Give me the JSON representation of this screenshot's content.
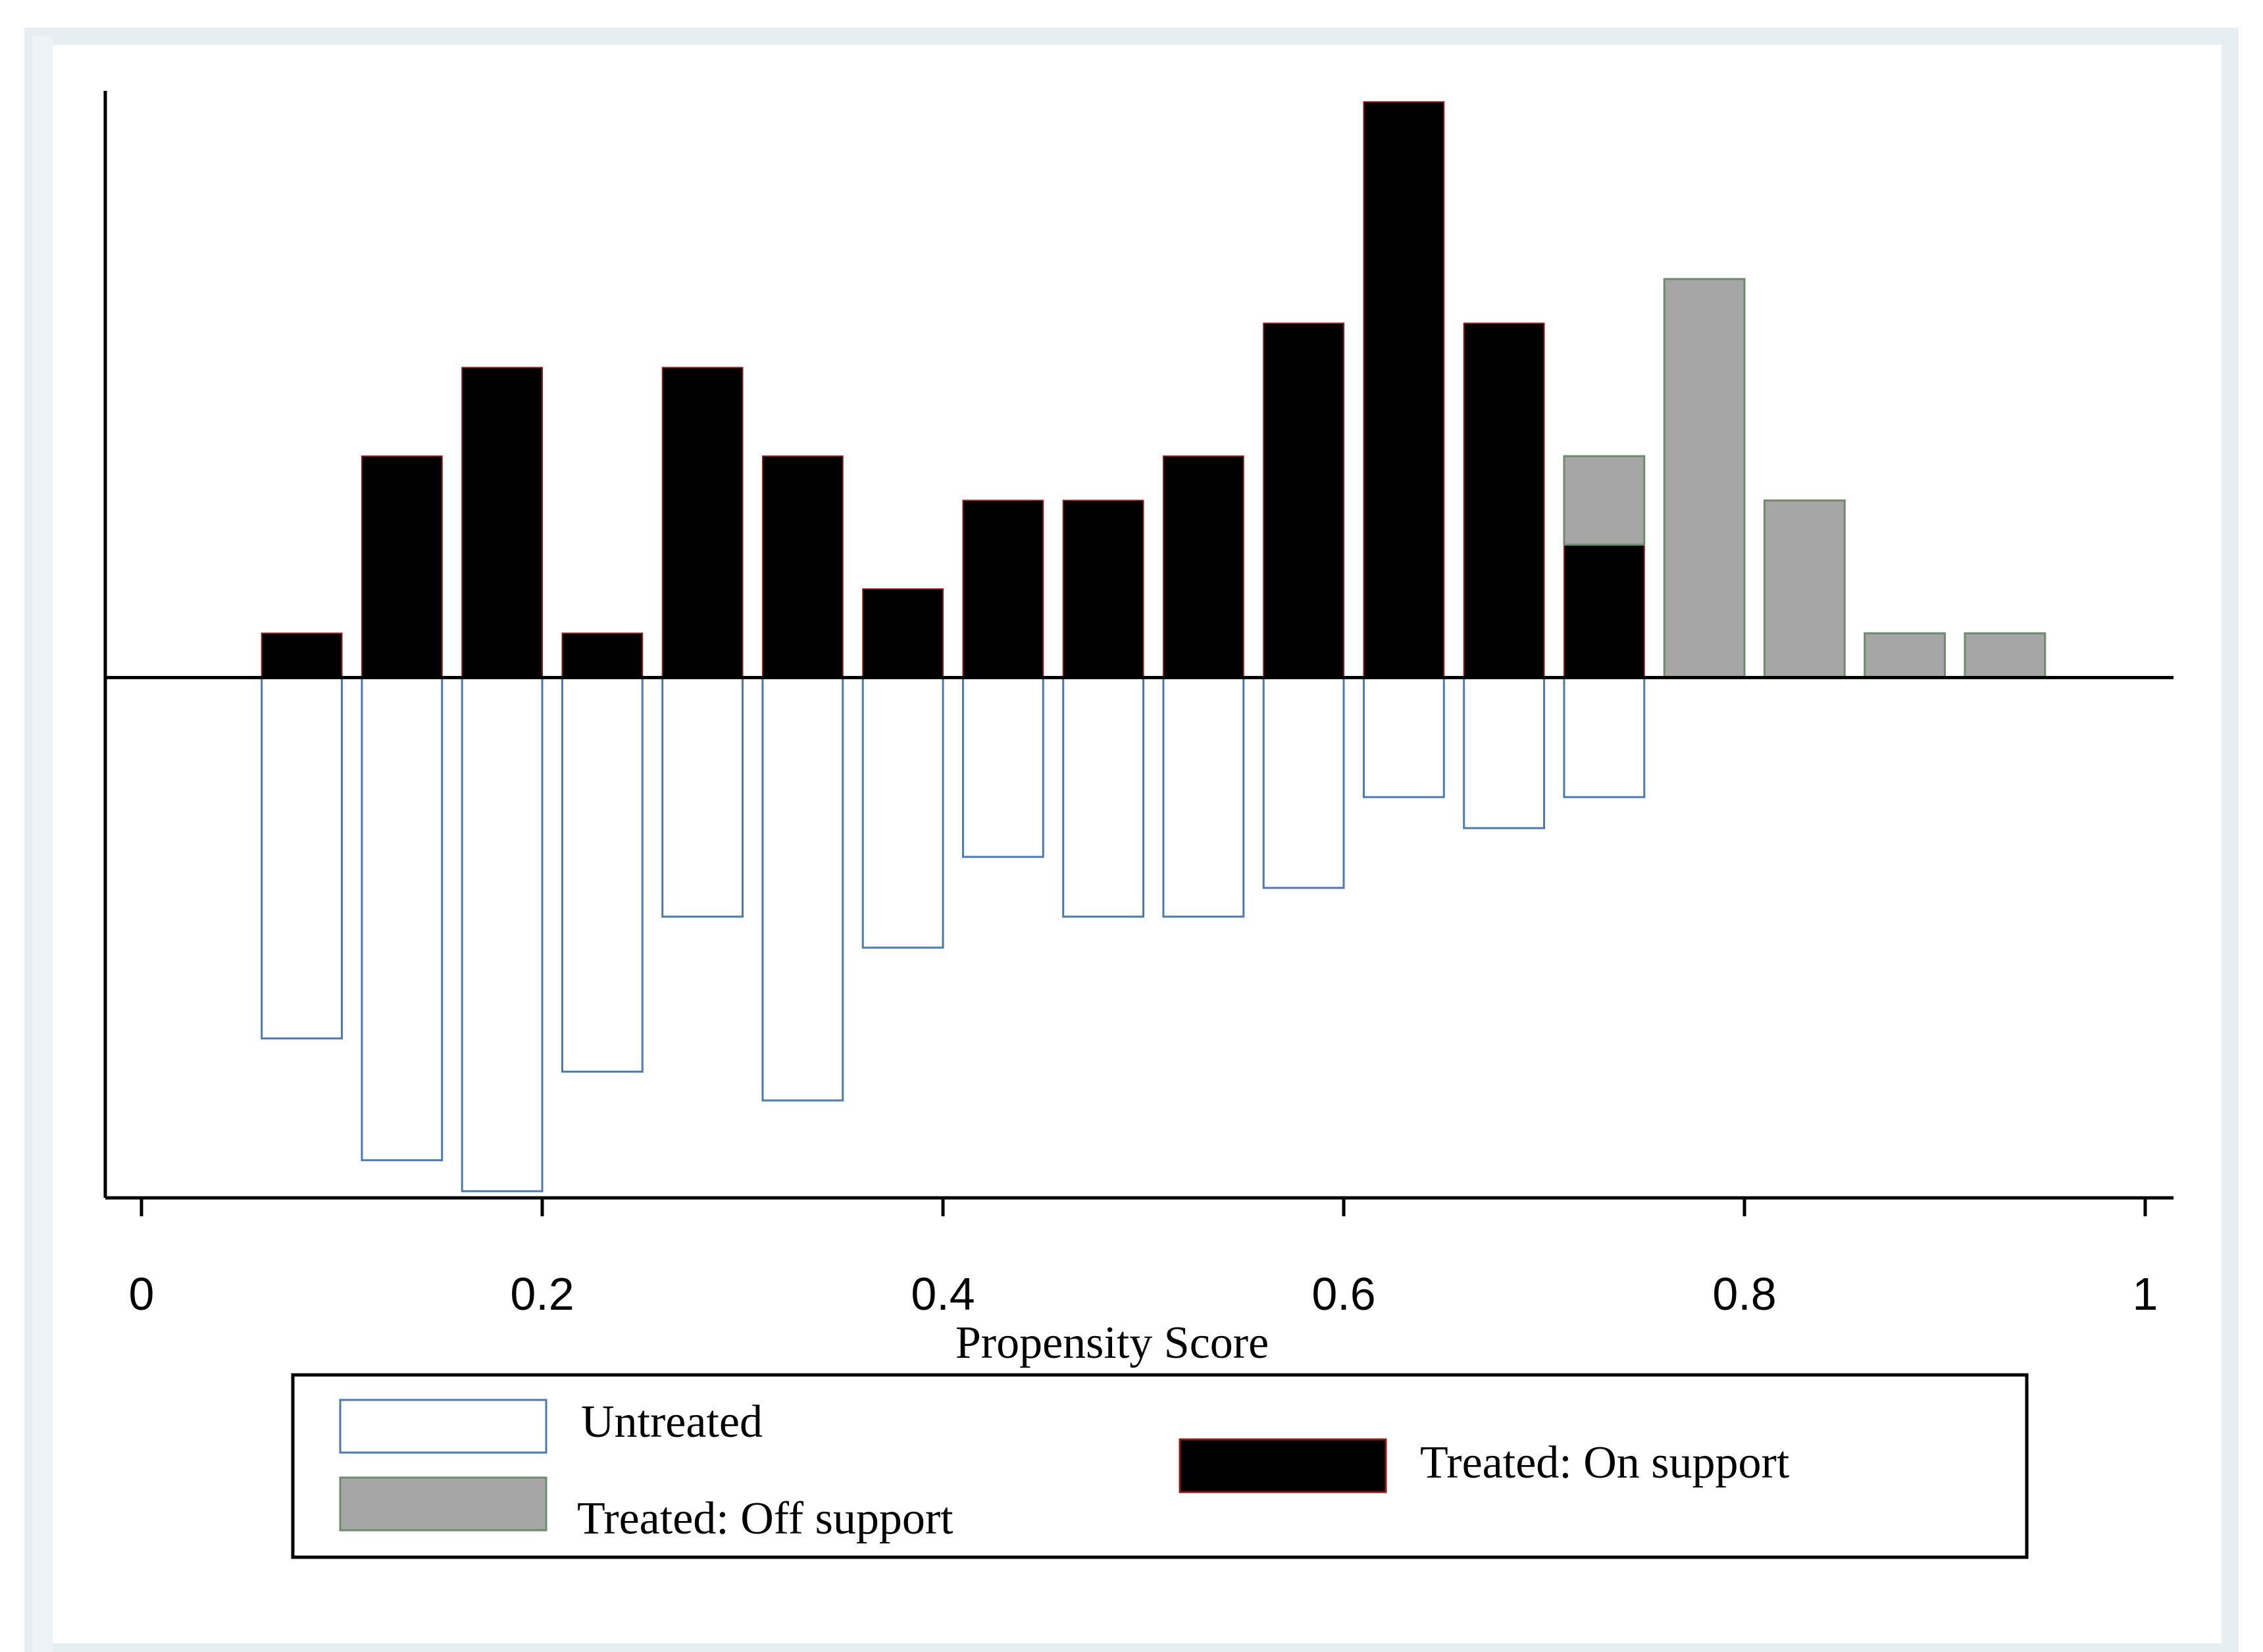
{
  "chart_data": {
    "type": "bar",
    "title": "",
    "xlabel": "Propensity Score",
    "ylabel": "",
    "xlim": [
      -0.003,
      1.02
    ],
    "ylim": [
      -0.235,
      0.265
    ],
    "x_ticks": [
      0,
      0.2,
      0.4,
      0.6,
      0.8,
      1
    ],
    "x_tick_labels": [
      "0",
      "0.2",
      "0.4",
      "0.6",
      "0.8",
      "1"
    ],
    "bin_width": 0.04,
    "bins": [
      0.08,
      0.13,
      0.18,
      0.23,
      0.28,
      0.33,
      0.38,
      0.43,
      0.48,
      0.53,
      0.58,
      0.63,
      0.68,
      0.73,
      0.78,
      0.83,
      0.88,
      0.93
    ],
    "series": [
      {
        "name": "Untreated",
        "direction": "down",
        "color": "#4a7ab0",
        "values": [
          0.163,
          0.218,
          0.232,
          0.178,
          0.108,
          0.191,
          0.122,
          0.081,
          0.108,
          0.108,
          0.095,
          0.054,
          0.068,
          0.054,
          0,
          0,
          0,
          0
        ]
      },
      {
        "name": "Treated: On support",
        "direction": "up",
        "color": "#000000",
        "values": [
          0.02,
          0.1,
          0.14,
          0.02,
          0.14,
          0.1,
          0.04,
          0.08,
          0.08,
          0.1,
          0.16,
          0.26,
          0.16,
          0.06,
          0,
          0,
          0,
          0
        ]
      },
      {
        "name": "Treated: Off support",
        "direction": "up",
        "stacked_on": "Treated: On support",
        "color": "#a6a6a6",
        "values": [
          0,
          0,
          0,
          0,
          0,
          0,
          0,
          0,
          0,
          0,
          0,
          0,
          0,
          0.04,
          0.18,
          0.08,
          0.02,
          0.02
        ]
      }
    ],
    "legend": {
      "position": "bottom",
      "entries": [
        {
          "label": "Untreated",
          "style": "outline",
          "color": "#4a7ab0"
        },
        {
          "label": "Treated: Off support",
          "style": "fill",
          "color": "#a6a6a6"
        },
        {
          "label": "Treated: On support",
          "style": "fill",
          "color": "#000000"
        }
      ]
    }
  }
}
